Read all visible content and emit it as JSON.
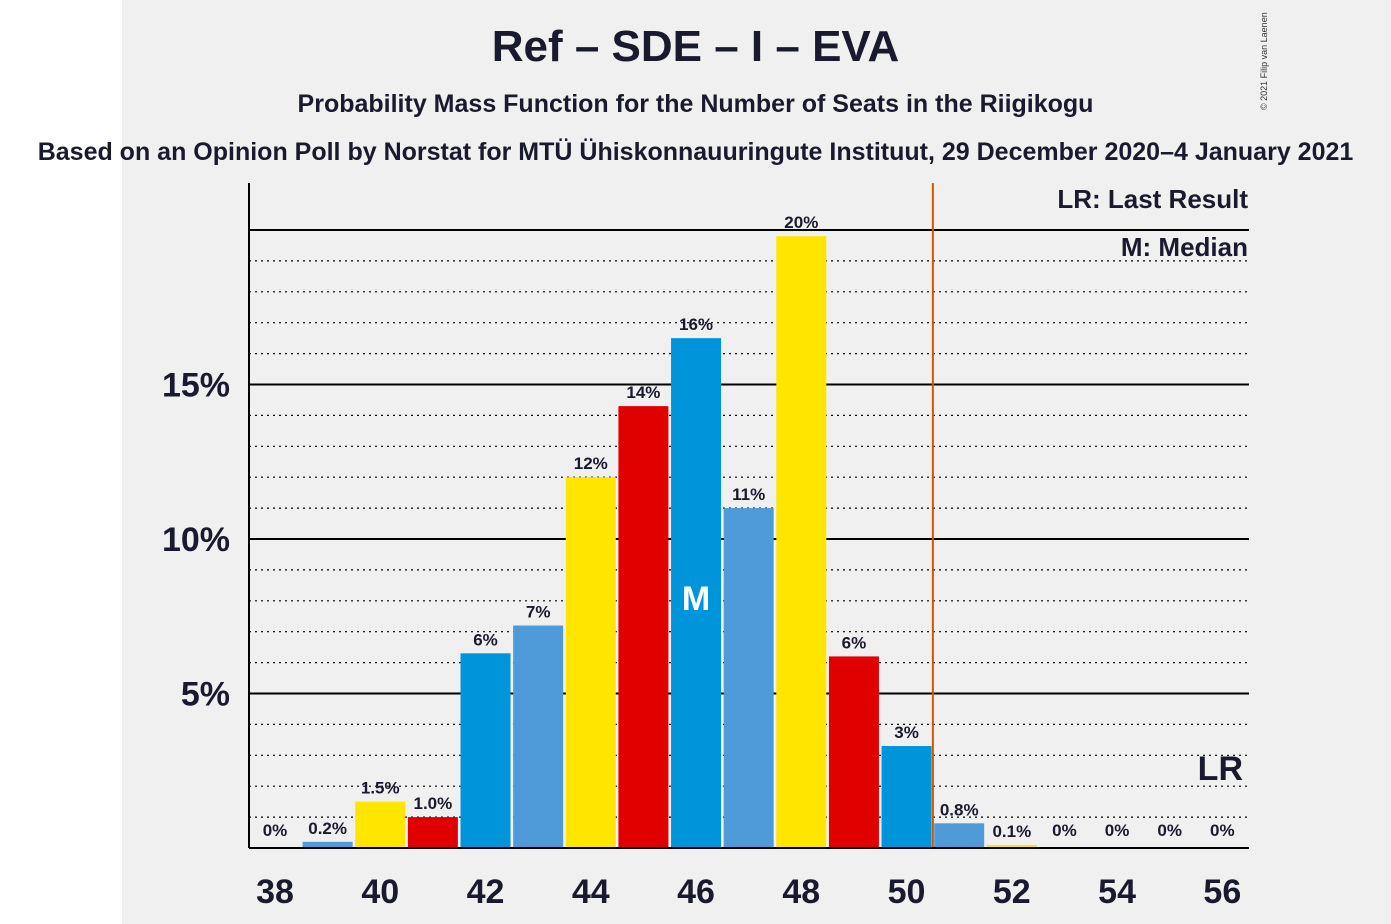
{
  "header": {
    "title": "Ref – SDE – I – EVA",
    "subtitle": "Probability Mass Function for the Number of Seats in the Riigikogu",
    "poll": "Based on an Opinion Poll by Norstat for MTÜ Ühiskonnauuringute Instituut, 29 December 2020–4 January 2021",
    "copyright": "© 2021 Filip van Laenen"
  },
  "legend": {
    "last_result": "LR: Last Result",
    "median": "M: Median"
  },
  "colors": {
    "yellow": "#FFE500",
    "red": "#E10000",
    "blue": "#0095DA",
    "lightblue": "#4F9BD9",
    "lr_line": "#D45500",
    "text": "#1a1a2e"
  },
  "chart_data": {
    "type": "bar",
    "title": "Ref – SDE – I – EVA",
    "xlabel": "",
    "ylabel": "",
    "ylim": [
      0,
      21.5
    ],
    "yticks": [
      5,
      10,
      15
    ],
    "ytick_labels": [
      "5%",
      "10%",
      "15%"
    ],
    "xtick_labels": [
      "38",
      "40",
      "42",
      "44",
      "46",
      "48",
      "50",
      "52",
      "54",
      "56"
    ],
    "xticks": [
      38,
      40,
      42,
      44,
      46,
      48,
      50,
      52,
      54,
      56
    ],
    "grid": "dotted every 1%, solid every 5%",
    "median_seat": 46,
    "median_label": "M",
    "last_result_seat": 56,
    "last_result_label": "LR",
    "bars": [
      {
        "seat": 38,
        "value": 0,
        "label": "0%",
        "color": "blue"
      },
      {
        "seat": 39,
        "value": 0.2,
        "label": "0.2%",
        "color": "lightblue"
      },
      {
        "seat": 40,
        "value": 1.5,
        "label": "1.5%",
        "color": "yellow"
      },
      {
        "seat": 41,
        "value": 1.0,
        "label": "1.0%",
        "color": "red"
      },
      {
        "seat": 42,
        "value": 6.3,
        "label": "6%",
        "color": "blue"
      },
      {
        "seat": 43,
        "value": 7.2,
        "label": "7%",
        "color": "lightblue"
      },
      {
        "seat": 44,
        "value": 12.0,
        "label": "12%",
        "color": "yellow"
      },
      {
        "seat": 45,
        "value": 14.3,
        "label": "14%",
        "color": "red"
      },
      {
        "seat": 46,
        "value": 16.5,
        "label": "16%",
        "color": "blue"
      },
      {
        "seat": 47,
        "value": 11.0,
        "label": "11%",
        "color": "lightblue"
      },
      {
        "seat": 48,
        "value": 19.8,
        "label": "20%",
        "color": "yellow"
      },
      {
        "seat": 49,
        "value": 6.2,
        "label": "6%",
        "color": "red"
      },
      {
        "seat": 50,
        "value": 3.3,
        "label": "3%",
        "color": "blue"
      },
      {
        "seat": 51,
        "value": 0.8,
        "label": "0.8%",
        "color": "lightblue"
      },
      {
        "seat": 52,
        "value": 0.1,
        "label": "0.1%",
        "color": "yellow"
      },
      {
        "seat": 53,
        "value": 0,
        "label": "0%",
        "color": "red"
      },
      {
        "seat": 54,
        "value": 0,
        "label": "0%",
        "color": "blue"
      },
      {
        "seat": 55,
        "value": 0,
        "label": "0%",
        "color": "lightblue"
      },
      {
        "seat": 56,
        "value": 0,
        "label": "0%",
        "color": "yellow"
      }
    ]
  }
}
